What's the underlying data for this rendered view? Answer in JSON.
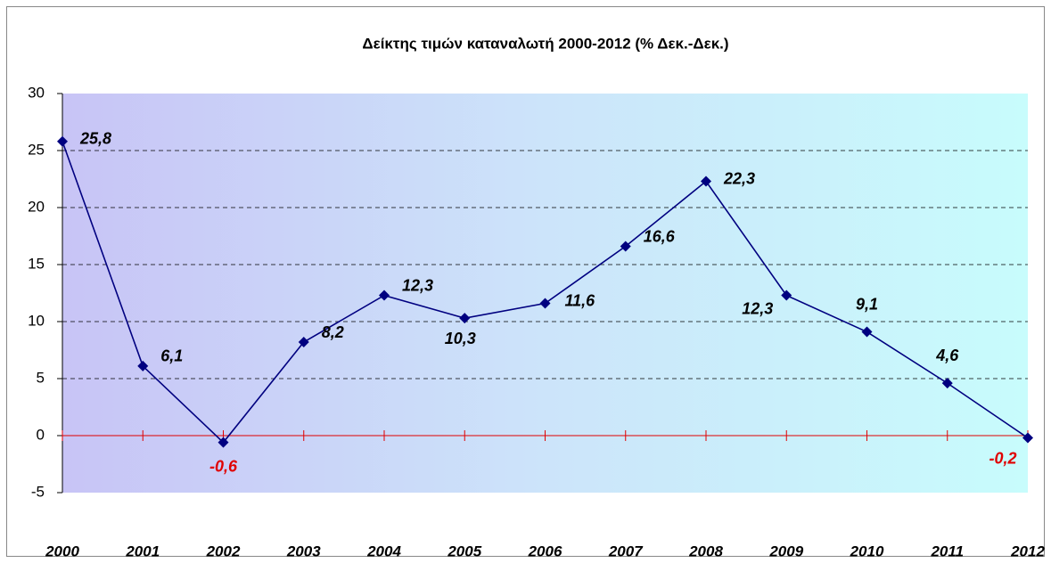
{
  "chart_data": {
    "type": "line",
    "title": "Δείκτης τιμών καταναλωτή 2000-2012 (% Δεκ.-Δεκ.)",
    "categories": [
      "2000",
      "2001",
      "2002",
      "2003",
      "2004",
      "2005",
      "2006",
      "2007",
      "2008",
      "2009",
      "2010",
      "2011",
      "2012"
    ],
    "series": [
      {
        "name": "Δείκτης τιμών καταναλωτή",
        "color": "#000080",
        "values": [
          25.8,
          6.1,
          -0.6,
          8.2,
          12.3,
          10.3,
          11.6,
          16.6,
          22.3,
          12.3,
          9.1,
          4.6,
          -0.2
        ],
        "value_labels": [
          "25,8",
          "6,1",
          "-0,6",
          "8,2",
          "12,3",
          "10,3",
          "11,6",
          "16,6",
          "22,3",
          "12,3",
          "9,1",
          "4,6",
          "-0,2"
        ]
      }
    ],
    "ylim": [
      -5,
      30
    ],
    "yticks": [
      -5,
      0,
      5,
      10,
      15,
      20,
      25,
      30
    ],
    "grid": true
  }
}
